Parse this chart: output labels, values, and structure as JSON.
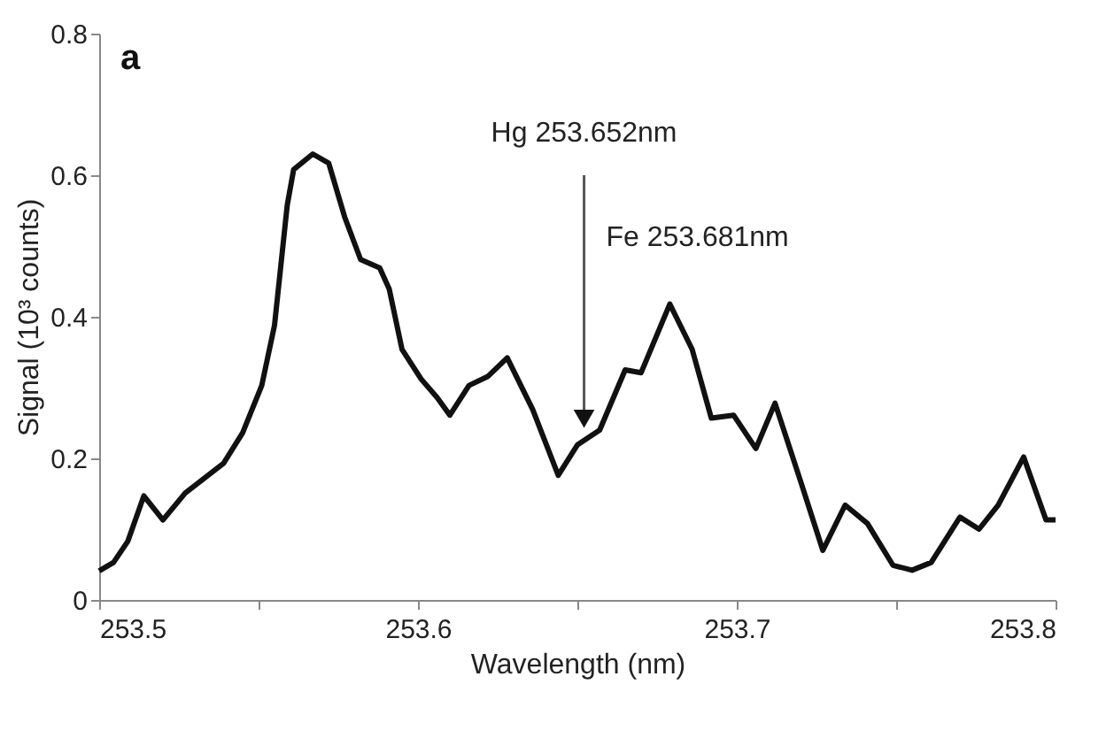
{
  "chart_data": {
    "type": "line",
    "xlabel": "Wavelength (nm)",
    "ylabel": "Signal (10³ counts)",
    "x": [
      253.5,
      253.5045,
      253.509,
      253.514,
      253.52,
      253.527,
      253.533,
      253.539,
      253.545,
      253.551,
      253.555,
      253.559,
      253.561,
      253.567,
      253.572,
      253.577,
      253.582,
      253.588,
      253.591,
      253.595,
      253.601,
      253.606,
      253.61,
      253.616,
      253.622,
      253.628,
      253.636,
      253.644,
      253.65,
      253.657,
      253.665,
      253.67,
      253.679,
      253.686,
      253.692,
      253.699,
      253.706,
      253.712,
      253.72,
      253.727,
      253.734,
      253.741,
      253.749,
      253.755,
      253.761,
      253.77,
      253.776,
      253.782,
      253.79,
      253.797,
      253.8
    ],
    "series": [
      {
        "color": "#111111",
        "values": [
          0.041,
          0.053,
          0.083,
          0.147,
          0.113,
          0.151,
          0.172,
          0.193,
          0.236,
          0.303,
          0.388,
          0.558,
          0.608,
          0.63,
          0.617,
          0.541,
          0.481,
          0.469,
          0.439,
          0.354,
          0.312,
          0.286,
          0.261,
          0.303,
          0.316,
          0.342,
          0.269,
          0.176,
          0.219,
          0.24,
          0.325,
          0.321,
          0.418,
          0.354,
          0.257,
          0.261,
          0.214,
          0.278,
          0.168,
          0.07,
          0.134,
          0.108,
          0.049,
          0.042,
          0.053,
          0.117,
          0.1,
          0.134,
          0.202,
          0.113,
          0.113
        ]
      }
    ],
    "xlim": [
      253.5,
      253.8
    ],
    "xticks": [
      253.5,
      {
        "value": 253.55,
        "label": null
      },
      253.6,
      {
        "value": 253.65,
        "label": null
      },
      253.7,
      {
        "value": 253.75,
        "label": null
      },
      253.8
    ],
    "ylim": [
      0,
      0.8
    ],
    "yticks": [
      0,
      0.2,
      0.4,
      0.6,
      0.8
    ],
    "annotations": [
      "a",
      "Hg 253.652nm",
      {
        "text": "Fe 253.681nm",
        "x": 253.681,
        "y": 0.418
      }
    ],
    "grid": false,
    "marker": "none",
    "line_style": "solid"
  }
}
